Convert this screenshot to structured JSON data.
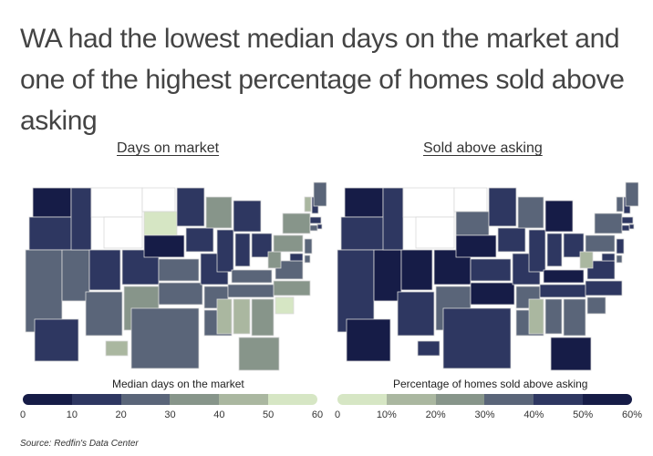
{
  "headline": "WA had the lowest median days on the market and one of the highest percentage of homes sold above asking",
  "maps": [
    {
      "title": "Days on market",
      "legend_title": "Median days on the market",
      "palette": [
        "#161c47",
        "#2e3761",
        "#5a6579",
        "#87958a",
        "#aab7a0",
        "#d6e6c4"
      ],
      "ticks": [
        "0",
        "10",
        "20",
        "30",
        "40",
        "50",
        "60"
      ],
      "states": {
        "WA": 0,
        "OR": 1,
        "CA": 2,
        "NV": 2,
        "ID": 1,
        "MT": null,
        "WY": null,
        "UT": 1,
        "AZ": 2,
        "CO": 1,
        "NM": 3,
        "ND": null,
        "SD": 5,
        "NE": 0,
        "KS": 2,
        "OK": 2,
        "TX": 2,
        "MN": 1,
        "IA": 1,
        "MO": 1,
        "AR": 2,
        "LA": 2,
        "WI": 3,
        "IL": 1,
        "MI": 1,
        "IN": 1,
        "OH": 1,
        "KY": 2,
        "TN": 2,
        "MS": 4,
        "AL": 4,
        "GA": 3,
        "FL": 3,
        "SC": 5,
        "NC": 3,
        "VA": 2,
        "WV": 3,
        "PA": 3,
        "NY": 3,
        "VT": 4,
        "NH": 1,
        "ME": 2,
        "MA": 1,
        "RI": 1,
        "CT": 2,
        "NJ": 2,
        "DE": 2,
        "MD": 1,
        "AK": 1,
        "HI": 4
      }
    },
    {
      "title": "Sold above asking",
      "legend_title": "Percentage of homes sold above asking",
      "palette": [
        "#d6e6c4",
        "#aab7a0",
        "#87958a",
        "#5a6579",
        "#2e3761",
        "#161c47"
      ],
      "ticks": [
        "0",
        "10%",
        "20%",
        "30%",
        "40%",
        "50%",
        "60%"
      ],
      "states": {
        "WA": 5,
        "OR": 4,
        "CA": 4,
        "NV": 5,
        "ID": 4,
        "MT": null,
        "WY": null,
        "UT": 5,
        "AZ": 4,
        "CO": 5,
        "NM": 3,
        "ND": null,
        "SD": 3,
        "NE": 5,
        "KS": 4,
        "OK": 5,
        "TX": 4,
        "MN": 4,
        "IA": 4,
        "MO": 4,
        "AR": 3,
        "LA": 3,
        "WI": 3,
        "IL": 4,
        "MI": 5,
        "IN": 4,
        "OH": 4,
        "KY": 5,
        "TN": 4,
        "MS": 1,
        "AL": 3,
        "GA": 3,
        "FL": 5,
        "SC": 3,
        "NC": 4,
        "VA": 4,
        "WV": 1,
        "PA": 3,
        "NY": 3,
        "VT": 3,
        "NH": 4,
        "ME": 3,
        "MA": 4,
        "RI": 4,
        "CT": 4,
        "NJ": 4,
        "DE": 3,
        "MD": 4,
        "AK": 5,
        "HI": 4
      }
    }
  ],
  "source": "Source:  Redfin's Data Center"
}
